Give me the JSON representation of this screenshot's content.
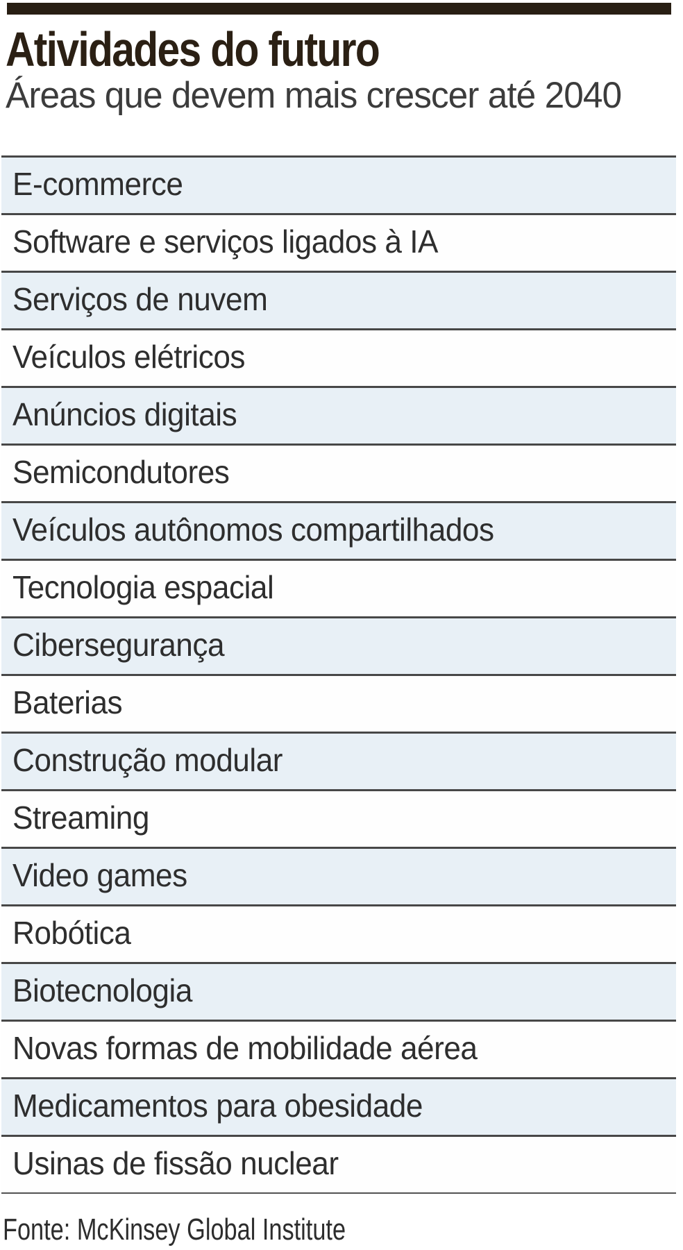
{
  "theme": {
    "row_blue": "#e8f0f6",
    "row_white": "#fefefe",
    "rule": "#474747",
    "thin_rule": "#525252",
    "bar": "#281e13",
    "title": "#2b2014",
    "subtitle": "#3c3c3c",
    "row_text": "#2e2e2e",
    "footer_text": "#2d2d2d"
  },
  "header": {
    "title": "Atividades do futuro",
    "subtitle": "Áreas que devem mais crescer até 2040"
  },
  "list": {
    "items": [
      "E-commerce",
      "Software e serviços ligados à IA",
      "Serviços de nuvem",
      "Veículos elétricos",
      "Anúncios digitais",
      "Semicondutores",
      "Veículos autônomos compartilhados",
      "Tecnologia espacial",
      "Cibersegurança",
      "Baterias",
      "Construção modular",
      "Streaming",
      "Video games",
      "Robótica",
      "Biotecnologia",
      "Novas formas de mobilidade aérea",
      "Medicamentos para obesidade",
      "Usinas de fissão nuclear"
    ]
  },
  "footer": {
    "source": "Fonte: McKinsey Global Institute"
  },
  "chart_data": {
    "type": "table",
    "title": "Atividades do futuro",
    "subtitle": "Áreas que devem mais crescer até 2040",
    "categories": [
      "E-commerce",
      "Software e serviços ligados à IA",
      "Serviços de nuvem",
      "Veículos elétricos",
      "Anúncios digitais",
      "Semicondutores",
      "Veículos autônomos compartilhados",
      "Tecnologia espacial",
      "Cibersegurança",
      "Baterias",
      "Construção modular",
      "Streaming",
      "Video games",
      "Robótica",
      "Biotecnologia",
      "Novas formas de mobilidade aérea",
      "Medicamentos para obesidade",
      "Usinas de fissão nuclear"
    ],
    "source": "Fonte: McKinsey Global Institute",
    "layout": {
      "row_striping": "alternating, odd rows light blue starting with first row",
      "grid": "horizontal rules between rows, thin rule below last row",
      "legend": "none",
      "axes": "none (ranked list, no numeric values shown)"
    }
  }
}
